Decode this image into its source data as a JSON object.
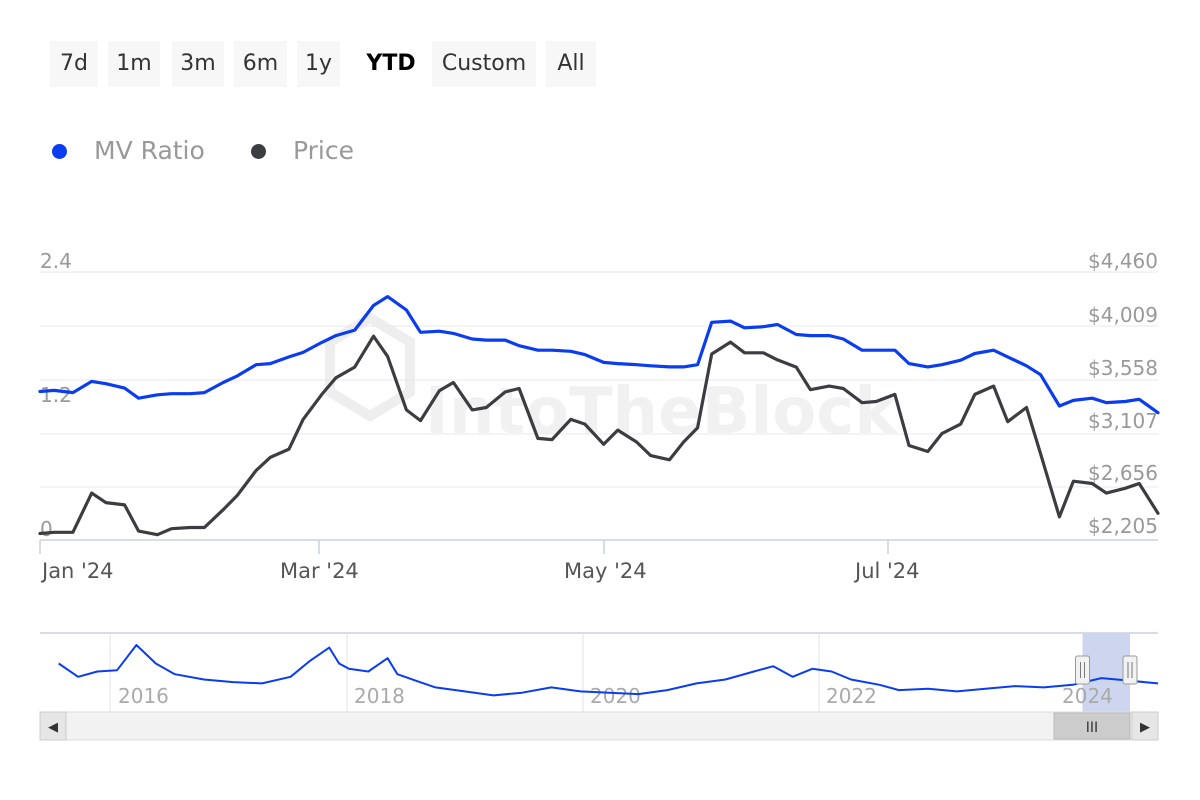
{
  "range_selector": {
    "buttons": [
      "7d",
      "1m",
      "3m",
      "6m",
      "1y",
      "YTD",
      "Custom",
      "All"
    ],
    "active": "YTD"
  },
  "legend": [
    {
      "label": "MV Ratio",
      "color": "#0a3cf0"
    },
    {
      "label": "Price",
      "color": "#3c3d40"
    }
  ],
  "watermark": "IntoTheBlock",
  "navigator": {
    "year_labels": [
      "2016",
      "2018",
      "2020",
      "2022",
      "2024"
    ],
    "scroll_grip": "III",
    "left_arrow": "◀",
    "right_arrow": "▶"
  },
  "chart_data": {
    "type": "line",
    "x_tick_labels": [
      "Jan '24",
      "Mar '24",
      "May '24",
      "Jul '24"
    ],
    "left_axis": {
      "labels": [
        "2.4",
        "1.2",
        "0"
      ]
    },
    "right_axis": {
      "labels": [
        "$4,460",
        "$4,009",
        "$3,558",
        "$3,107",
        "$2,656",
        "$2,205"
      ]
    },
    "x_range": [
      "2024-01-01",
      "2024-08-26"
    ],
    "series": [
      {
        "name": "MV Ratio",
        "color": "#0a3cf0",
        "points": [
          [
            "2024-01-01",
            1.33
          ],
          [
            "2024-01-04",
            1.34
          ],
          [
            "2024-01-08",
            1.32
          ],
          [
            "2024-01-12",
            1.42
          ],
          [
            "2024-01-15",
            1.4
          ],
          [
            "2024-01-19",
            1.36
          ],
          [
            "2024-01-22",
            1.27
          ],
          [
            "2024-01-26",
            1.3
          ],
          [
            "2024-01-29",
            1.31
          ],
          [
            "2024-02-02",
            1.31
          ],
          [
            "2024-02-05",
            1.32
          ],
          [
            "2024-02-09",
            1.41
          ],
          [
            "2024-02-12",
            1.47
          ],
          [
            "2024-02-16",
            1.57
          ],
          [
            "2024-02-19",
            1.58
          ],
          [
            "2024-02-23",
            1.64
          ],
          [
            "2024-02-26",
            1.68
          ],
          [
            "2024-03-01",
            1.77
          ],
          [
            "2024-03-04",
            1.83
          ],
          [
            "2024-03-08",
            1.88
          ],
          [
            "2024-03-12",
            2.1
          ],
          [
            "2024-03-15",
            2.18
          ],
          [
            "2024-03-19",
            2.06
          ],
          [
            "2024-03-22",
            1.86
          ],
          [
            "2024-03-26",
            1.87
          ],
          [
            "2024-03-29",
            1.85
          ],
          [
            "2024-04-02",
            1.8
          ],
          [
            "2024-04-05",
            1.79
          ],
          [
            "2024-04-09",
            1.79
          ],
          [
            "2024-04-12",
            1.74
          ],
          [
            "2024-04-16",
            1.7
          ],
          [
            "2024-04-19",
            1.7
          ],
          [
            "2024-04-23",
            1.69
          ],
          [
            "2024-04-26",
            1.66
          ],
          [
            "2024-04-30",
            1.59
          ],
          [
            "2024-05-03",
            1.58
          ],
          [
            "2024-05-07",
            1.57
          ],
          [
            "2024-05-10",
            1.56
          ],
          [
            "2024-05-14",
            1.55
          ],
          [
            "2024-05-17",
            1.55
          ],
          [
            "2024-05-20",
            1.57
          ],
          [
            "2024-05-23",
            1.95
          ],
          [
            "2024-05-27",
            1.96
          ],
          [
            "2024-05-30",
            1.9
          ],
          [
            "2024-06-03",
            1.91
          ],
          [
            "2024-06-06",
            1.93
          ],
          [
            "2024-06-10",
            1.84
          ],
          [
            "2024-06-13",
            1.83
          ],
          [
            "2024-06-17",
            1.83
          ],
          [
            "2024-06-20",
            1.8
          ],
          [
            "2024-06-24",
            1.7
          ],
          [
            "2024-06-27",
            1.7
          ],
          [
            "2024-07-01",
            1.7
          ],
          [
            "2024-07-04",
            1.58
          ],
          [
            "2024-07-08",
            1.55
          ],
          [
            "2024-07-11",
            1.57
          ],
          [
            "2024-07-15",
            1.61
          ],
          [
            "2024-07-18",
            1.67
          ],
          [
            "2024-07-22",
            1.7
          ],
          [
            "2024-07-25",
            1.64
          ],
          [
            "2024-07-29",
            1.56
          ],
          [
            "2024-08-01",
            1.48
          ],
          [
            "2024-08-05",
            1.2
          ],
          [
            "2024-08-08",
            1.25
          ],
          [
            "2024-08-12",
            1.27
          ],
          [
            "2024-08-15",
            1.23
          ],
          [
            "2024-08-19",
            1.24
          ],
          [
            "2024-08-22",
            1.26
          ],
          [
            "2024-08-26",
            1.14
          ]
        ]
      },
      {
        "name": "Price",
        "color": "#3c3d40",
        "points": [
          [
            "2024-01-01",
            2260
          ],
          [
            "2024-01-04",
            2270
          ],
          [
            "2024-01-08",
            2270
          ],
          [
            "2024-01-12",
            2600
          ],
          [
            "2024-01-15",
            2520
          ],
          [
            "2024-01-19",
            2500
          ],
          [
            "2024-01-22",
            2280
          ],
          [
            "2024-01-26",
            2250
          ],
          [
            "2024-01-29",
            2300
          ],
          [
            "2024-02-02",
            2310
          ],
          [
            "2024-02-05",
            2310
          ],
          [
            "2024-02-09",
            2460
          ],
          [
            "2024-02-12",
            2580
          ],
          [
            "2024-02-16",
            2790
          ],
          [
            "2024-02-19",
            2900
          ],
          [
            "2024-02-23",
            2970
          ],
          [
            "2024-02-26",
            3220
          ],
          [
            "2024-03-01",
            3430
          ],
          [
            "2024-03-04",
            3570
          ],
          [
            "2024-03-08",
            3660
          ],
          [
            "2024-03-12",
            3920
          ],
          [
            "2024-03-15",
            3750
          ],
          [
            "2024-03-19",
            3300
          ],
          [
            "2024-03-22",
            3210
          ],
          [
            "2024-03-26",
            3460
          ],
          [
            "2024-03-29",
            3530
          ],
          [
            "2024-04-02",
            3300
          ],
          [
            "2024-04-05",
            3320
          ],
          [
            "2024-04-09",
            3450
          ],
          [
            "2024-04-12",
            3480
          ],
          [
            "2024-04-16",
            3060
          ],
          [
            "2024-04-19",
            3050
          ],
          [
            "2024-04-23",
            3220
          ],
          [
            "2024-04-26",
            3180
          ],
          [
            "2024-04-30",
            3010
          ],
          [
            "2024-05-03",
            3130
          ],
          [
            "2024-05-07",
            3030
          ],
          [
            "2024-05-10",
            2915
          ],
          [
            "2024-05-14",
            2880
          ],
          [
            "2024-05-17",
            3030
          ],
          [
            "2024-05-20",
            3150
          ],
          [
            "2024-05-23",
            3770
          ],
          [
            "2024-05-27",
            3870
          ],
          [
            "2024-05-30",
            3780
          ],
          [
            "2024-06-03",
            3780
          ],
          [
            "2024-06-06",
            3720
          ],
          [
            "2024-06-10",
            3660
          ],
          [
            "2024-06-13",
            3470
          ],
          [
            "2024-06-17",
            3500
          ],
          [
            "2024-06-20",
            3480
          ],
          [
            "2024-06-24",
            3360
          ],
          [
            "2024-06-27",
            3370
          ],
          [
            "2024-07-01",
            3430
          ],
          [
            "2024-07-04",
            3000
          ],
          [
            "2024-07-08",
            2950
          ],
          [
            "2024-07-11",
            3100
          ],
          [
            "2024-07-15",
            3180
          ],
          [
            "2024-07-18",
            3430
          ],
          [
            "2024-07-22",
            3500
          ],
          [
            "2024-07-25",
            3200
          ],
          [
            "2024-07-29",
            3320
          ],
          [
            "2024-08-01",
            2930
          ],
          [
            "2024-08-05",
            2400
          ],
          [
            "2024-08-08",
            2700
          ],
          [
            "2024-08-12",
            2680
          ],
          [
            "2024-08-15",
            2600
          ],
          [
            "2024-08-19",
            2640
          ],
          [
            "2024-08-22",
            2680
          ],
          [
            "2024-08-26",
            2430
          ]
        ]
      }
    ]
  },
  "navigator_chart_data": {
    "type": "line",
    "color": "#0a3cf0",
    "x_range": [
      "2015-01-01",
      "2024-08-26"
    ],
    "points": [
      [
        "2015-03-01",
        1.6
      ],
      [
        "2015-05-01",
        1.1
      ],
      [
        "2015-07-01",
        1.3
      ],
      [
        "2015-09-01",
        1.35
      ],
      [
        "2015-11-01",
        2.3
      ],
      [
        "2016-01-01",
        1.6
      ],
      [
        "2016-03-01",
        1.2
      ],
      [
        "2016-06-01",
        1.0
      ],
      [
        "2016-09-01",
        0.9
      ],
      [
        "2016-12-01",
        0.85
      ],
      [
        "2017-03-01",
        1.1
      ],
      [
        "2017-05-01",
        1.7
      ],
      [
        "2017-07-01",
        2.2
      ],
      [
        "2017-08-01",
        1.6
      ],
      [
        "2017-09-01",
        1.4
      ],
      [
        "2017-11-01",
        1.3
      ],
      [
        "2018-01-01",
        1.8
      ],
      [
        "2018-02-01",
        1.2
      ],
      [
        "2018-04-01",
        0.95
      ],
      [
        "2018-06-01",
        0.7
      ],
      [
        "2018-09-01",
        0.55
      ],
      [
        "2018-12-01",
        0.4
      ],
      [
        "2019-03-01",
        0.5
      ],
      [
        "2019-06-01",
        0.7
      ],
      [
        "2019-09-01",
        0.55
      ],
      [
        "2019-12-01",
        0.5
      ],
      [
        "2020-03-01",
        0.45
      ],
      [
        "2020-06-01",
        0.6
      ],
      [
        "2020-09-01",
        0.85
      ],
      [
        "2020-12-01",
        1.0
      ],
      [
        "2021-03-01",
        1.3
      ],
      [
        "2021-05-01",
        1.5
      ],
      [
        "2021-07-01",
        1.1
      ],
      [
        "2021-09-01",
        1.4
      ],
      [
        "2021-11-01",
        1.3
      ],
      [
        "2022-01-01",
        1.0
      ],
      [
        "2022-04-01",
        0.8
      ],
      [
        "2022-06-01",
        0.6
      ],
      [
        "2022-09-01",
        0.65
      ],
      [
        "2022-12-01",
        0.55
      ],
      [
        "2023-03-01",
        0.65
      ],
      [
        "2023-06-01",
        0.75
      ],
      [
        "2023-09-01",
        0.7
      ],
      [
        "2023-12-01",
        0.8
      ],
      [
        "2024-03-01",
        1.05
      ],
      [
        "2024-06-01",
        0.95
      ],
      [
        "2024-08-26",
        0.85
      ]
    ],
    "selection": [
      "2024-01-01",
      "2024-08-26"
    ]
  }
}
